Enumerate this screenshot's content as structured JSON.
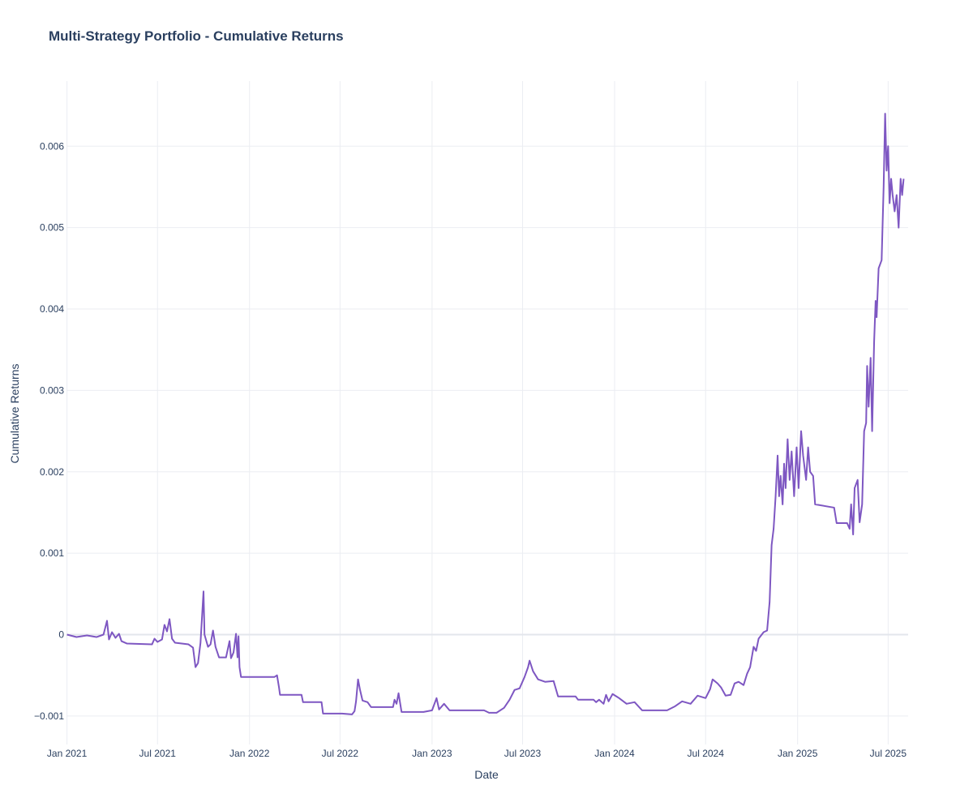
{
  "chart_data": {
    "type": "line",
    "title": "Multi-Strategy Portfolio - Cumulative Returns",
    "xlabel": "Date",
    "ylabel": "Cumulative Returns",
    "xlim": [
      "2020-12-31",
      "2025-08-10"
    ],
    "ylim": [
      -0.00135,
      0.0068
    ],
    "grid": true,
    "legend": "none",
    "x_ticks": [
      {
        "date": "2021-01-01",
        "label": "Jan 2021"
      },
      {
        "date": "2021-07-01",
        "label": "Jul 2021"
      },
      {
        "date": "2022-01-01",
        "label": "Jan 2022"
      },
      {
        "date": "2022-07-01",
        "label": "Jul 2022"
      },
      {
        "date": "2023-01-01",
        "label": "Jan 2023"
      },
      {
        "date": "2023-07-01",
        "label": "Jul 2023"
      },
      {
        "date": "2024-01-01",
        "label": "Jan 2024"
      },
      {
        "date": "2024-07-01",
        "label": "Jul 2024"
      },
      {
        "date": "2025-01-01",
        "label": "Jan 2025"
      },
      {
        "date": "2025-07-01",
        "label": "Jul 2025"
      }
    ],
    "y_ticks": [
      {
        "value": -0.001,
        "label": "−0.001"
      },
      {
        "value": 0,
        "label": "0"
      },
      {
        "value": 0.001,
        "label": "0.001"
      },
      {
        "value": 0.002,
        "label": "0.002"
      },
      {
        "value": 0.003,
        "label": "0.003"
      },
      {
        "value": 0.004,
        "label": "0.004"
      },
      {
        "value": 0.005,
        "label": "0.005"
      },
      {
        "value": 0.006,
        "label": "0.006"
      }
    ],
    "series": [
      {
        "color": "#7e57c2",
        "points": [
          [
            "2021-01-01",
            0.0
          ],
          [
            "2021-01-20",
            -3e-05
          ],
          [
            "2021-02-10",
            -1e-05
          ],
          [
            "2021-03-01",
            -3e-05
          ],
          [
            "2021-03-15",
            0.0
          ],
          [
            "2021-03-22",
            0.00017
          ],
          [
            "2021-03-26",
            -6e-05
          ],
          [
            "2021-04-01",
            3e-05
          ],
          [
            "2021-04-08",
            -4e-05
          ],
          [
            "2021-04-15",
            1e-05
          ],
          [
            "2021-04-20",
            -8e-05
          ],
          [
            "2021-05-01",
            -0.00011
          ],
          [
            "2021-06-20",
            -0.00012
          ],
          [
            "2021-06-25",
            -5e-05
          ],
          [
            "2021-07-01",
            -9e-05
          ],
          [
            "2021-07-10",
            -6e-05
          ],
          [
            "2021-07-15",
            0.00012
          ],
          [
            "2021-07-20",
            4e-05
          ],
          [
            "2021-07-25",
            0.00019
          ],
          [
            "2021-07-30",
            -5e-05
          ],
          [
            "2021-08-05",
            -0.0001
          ],
          [
            "2021-09-01",
            -0.00012
          ],
          [
            "2021-09-10",
            -0.00016
          ],
          [
            "2021-09-15",
            -0.0004
          ],
          [
            "2021-09-20",
            -0.00035
          ],
          [
            "2021-09-25",
            -0.0001
          ],
          [
            "2021-10-01",
            0.00053
          ],
          [
            "2021-10-03",
            0.0
          ],
          [
            "2021-10-10",
            -0.00015
          ],
          [
            "2021-10-15",
            -0.00012
          ],
          [
            "2021-10-20",
            5e-05
          ],
          [
            "2021-10-25",
            -0.00015
          ],
          [
            "2021-11-01",
            -0.00028
          ],
          [
            "2021-11-15",
            -0.00028
          ],
          [
            "2021-11-22",
            -8e-05
          ],
          [
            "2021-11-25",
            -0.00029
          ],
          [
            "2021-11-30",
            -0.00022
          ],
          [
            "2021-12-05",
            1e-05
          ],
          [
            "2021-12-08",
            -0.00028
          ],
          [
            "2021-12-10",
            -2e-05
          ],
          [
            "2021-12-12",
            -0.0004
          ],
          [
            "2021-12-15",
            -0.00052
          ],
          [
            "2022-02-20",
            -0.00052
          ],
          [
            "2022-02-25",
            -0.0005
          ],
          [
            "2022-03-01",
            -0.00065
          ],
          [
            "2022-03-03",
            -0.00074
          ],
          [
            "2022-04-15",
            -0.00074
          ],
          [
            "2022-04-18",
            -0.00083
          ],
          [
            "2022-05-25",
            -0.00083
          ],
          [
            "2022-05-28",
            -0.00097
          ],
          [
            "2022-07-05",
            -0.00097
          ],
          [
            "2022-07-25",
            -0.00098
          ],
          [
            "2022-07-30",
            -0.00094
          ],
          [
            "2022-08-02",
            -0.00082
          ],
          [
            "2022-08-06",
            -0.00055
          ],
          [
            "2022-08-10",
            -0.00068
          ],
          [
            "2022-08-15",
            -0.00081
          ],
          [
            "2022-08-25",
            -0.00083
          ],
          [
            "2022-09-01",
            -0.00089
          ],
          [
            "2022-10-15",
            -0.00089
          ],
          [
            "2022-10-18",
            -0.0008
          ],
          [
            "2022-10-22",
            -0.00085
          ],
          [
            "2022-10-26",
            -0.00072
          ],
          [
            "2022-11-01",
            -0.00095
          ],
          [
            "2022-12-15",
            -0.00095
          ],
          [
            "2023-01-01",
            -0.00093
          ],
          [
            "2023-01-10",
            -0.00078
          ],
          [
            "2023-01-15",
            -0.00092
          ],
          [
            "2023-01-25",
            -0.00085
          ],
          [
            "2023-02-05",
            -0.00093
          ],
          [
            "2023-04-15",
            -0.00093
          ],
          [
            "2023-04-25",
            -0.00096
          ],
          [
            "2023-05-10",
            -0.00096
          ],
          [
            "2023-05-25",
            -0.0009
          ],
          [
            "2023-06-05",
            -0.0008
          ],
          [
            "2023-06-15",
            -0.00068
          ],
          [
            "2023-06-25",
            -0.00066
          ],
          [
            "2023-07-05",
            -0.00052
          ],
          [
            "2023-07-12",
            -0.0004
          ],
          [
            "2023-07-15",
            -0.00032
          ],
          [
            "2023-07-22",
            -0.00045
          ],
          [
            "2023-08-01",
            -0.00055
          ],
          [
            "2023-08-15",
            -0.00058
          ],
          [
            "2023-09-01",
            -0.00057
          ],
          [
            "2023-09-10",
            -0.00076
          ],
          [
            "2023-10-15",
            -0.00076
          ],
          [
            "2023-10-20",
            -0.0008
          ],
          [
            "2023-11-20",
            -0.0008
          ],
          [
            "2023-11-25",
            -0.00083
          ],
          [
            "2023-12-01",
            -0.0008
          ],
          [
            "2023-12-10",
            -0.00085
          ],
          [
            "2023-12-15",
            -0.00074
          ],
          [
            "2023-12-20",
            -0.00082
          ],
          [
            "2023-12-28",
            -0.00073
          ],
          [
            "2024-01-10",
            -0.00078
          ],
          [
            "2024-01-25",
            -0.00085
          ],
          [
            "2024-02-10",
            -0.00083
          ],
          [
            "2024-02-25",
            -0.00093
          ],
          [
            "2024-04-15",
            -0.00093
          ],
          [
            "2024-05-01",
            -0.00088
          ],
          [
            "2024-05-15",
            -0.00082
          ],
          [
            "2024-06-01",
            -0.00085
          ],
          [
            "2024-06-15",
            -0.00075
          ],
          [
            "2024-07-01",
            -0.00078
          ],
          [
            "2024-07-10",
            -0.00067
          ],
          [
            "2024-07-15",
            -0.00055
          ],
          [
            "2024-07-25",
            -0.0006
          ],
          [
            "2024-08-01",
            -0.00065
          ],
          [
            "2024-08-10",
            -0.00075
          ],
          [
            "2024-08-20",
            -0.00074
          ],
          [
            "2024-08-28",
            -0.0006
          ],
          [
            "2024-09-05",
            -0.00058
          ],
          [
            "2024-09-15",
            -0.00062
          ],
          [
            "2024-09-22",
            -0.00048
          ],
          [
            "2024-09-28",
            -0.0004
          ],
          [
            "2024-10-05",
            -0.00015
          ],
          [
            "2024-10-10",
            -0.0002
          ],
          [
            "2024-10-15",
            -5e-05
          ],
          [
            "2024-10-25",
            3e-05
          ],
          [
            "2024-11-01",
            5e-05
          ],
          [
            "2024-11-06",
            0.0004
          ],
          [
            "2024-11-10",
            0.0011
          ],
          [
            "2024-11-14",
            0.0013
          ],
          [
            "2024-11-18",
            0.0017
          ],
          [
            "2024-11-22",
            0.0022
          ],
          [
            "2024-11-25",
            0.0017
          ],
          [
            "2024-11-28",
            0.00195
          ],
          [
            "2024-12-02",
            0.0016
          ],
          [
            "2024-12-05",
            0.0021
          ],
          [
            "2024-12-08",
            0.0018
          ],
          [
            "2024-12-12",
            0.0024
          ],
          [
            "2024-12-16",
            0.0019
          ],
          [
            "2024-12-20",
            0.00225
          ],
          [
            "2024-12-25",
            0.0017
          ],
          [
            "2024-12-30",
            0.0023
          ],
          [
            "2025-01-03",
            0.0018
          ],
          [
            "2025-01-08",
            0.0025
          ],
          [
            "2025-01-12",
            0.0022
          ],
          [
            "2025-01-18",
            0.0019
          ],
          [
            "2025-01-22",
            0.0023
          ],
          [
            "2025-01-26",
            0.002
          ],
          [
            "2025-02-01",
            0.00195
          ],
          [
            "2025-02-05",
            0.0016
          ],
          [
            "2025-03-15",
            0.00156
          ],
          [
            "2025-03-20",
            0.00137
          ],
          [
            "2025-04-10",
            0.00137
          ],
          [
            "2025-04-15",
            0.0013
          ],
          [
            "2025-04-18",
            0.0016
          ],
          [
            "2025-04-22",
            0.00123
          ],
          [
            "2025-04-25",
            0.0018
          ],
          [
            "2025-05-01",
            0.0019
          ],
          [
            "2025-05-05",
            0.00138
          ],
          [
            "2025-05-10",
            0.0016
          ],
          [
            "2025-05-14",
            0.0025
          ],
          [
            "2025-05-18",
            0.0026
          ],
          [
            "2025-05-20",
            0.0033
          ],
          [
            "2025-05-23",
            0.0028
          ],
          [
            "2025-05-27",
            0.0034
          ],
          [
            "2025-05-30",
            0.0025
          ],
          [
            "2025-06-03",
            0.0036
          ],
          [
            "2025-06-06",
            0.0041
          ],
          [
            "2025-06-08",
            0.0039
          ],
          [
            "2025-06-12",
            0.0045
          ],
          [
            "2025-06-18",
            0.0046
          ],
          [
            "2025-06-22",
            0.0055
          ],
          [
            "2025-06-25",
            0.0064
          ],
          [
            "2025-06-28",
            0.0057
          ],
          [
            "2025-07-01",
            0.006
          ],
          [
            "2025-07-04",
            0.0053
          ],
          [
            "2025-07-07",
            0.0056
          ],
          [
            "2025-07-10",
            0.0054
          ],
          [
            "2025-07-14",
            0.0052
          ],
          [
            "2025-07-18",
            0.0054
          ],
          [
            "2025-07-22",
            0.005
          ],
          [
            "2025-07-26",
            0.0056
          ],
          [
            "2025-07-29",
            0.0054
          ],
          [
            "2025-08-01",
            0.0056
          ]
        ]
      }
    ]
  }
}
